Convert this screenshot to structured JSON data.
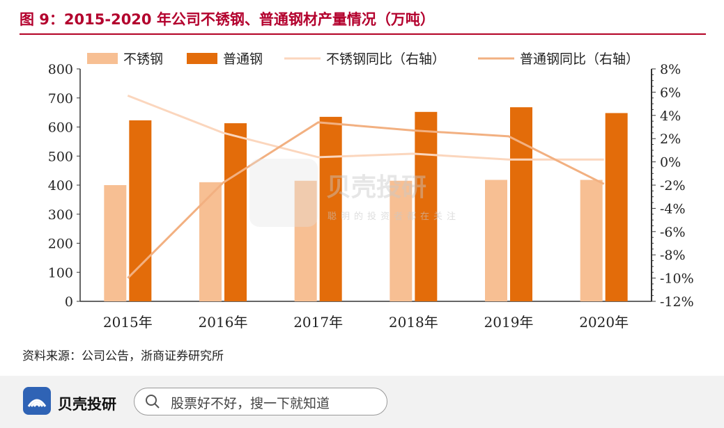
{
  "header": {
    "title": "图 9：2015-2020 年公司不锈钢、普通钢材产量情况（万吨）"
  },
  "source": "资料来源：公司公告，浙商证券研究所",
  "watermark": {
    "brand": "贝壳投研",
    "slogan": "聪明的投资者都在关注"
  },
  "footer": {
    "brand": "贝壳投研",
    "search_placeholder": "股票好不好，搜一下就知道"
  },
  "colors": {
    "stainless": "#f7bf93",
    "ordinary": "#e36c0a",
    "stainless_yoy": "#fbd6bd",
    "ordinary_yoy": "#f2b081",
    "title": "#b3002d"
  },
  "chart_data": {
    "type": "bar",
    "categories": [
      "2015年",
      "2016年",
      "2017年",
      "2018年",
      "2019年",
      "2020年"
    ],
    "series": [
      {
        "name": "不锈钢",
        "type": "bar",
        "axis": "left",
        "values": [
          400,
          410,
          415,
          415,
          418,
          418
        ]
      },
      {
        "name": "普通钢",
        "type": "bar",
        "axis": "left",
        "values": [
          623,
          613,
          635,
          652,
          668,
          648
        ]
      },
      {
        "name": "不锈钢同比（右轴）",
        "type": "line",
        "axis": "right",
        "values": [
          5.7,
          2.5,
          0.4,
          0.7,
          0.2,
          0.2
        ]
      },
      {
        "name": "普通钢同比（右轴）",
        "type": "line",
        "axis": "right",
        "values": [
          -10.0,
          -1.8,
          3.4,
          2.7,
          2.2,
          -1.9
        ]
      }
    ],
    "ylim": [
      0,
      800
    ],
    "yticks": [
      "0",
      "100",
      "200",
      "300",
      "400",
      "500",
      "600",
      "700",
      "800"
    ],
    "y2lim": [
      -12,
      8
    ],
    "y2ticks": [
      "-12%",
      "-10%",
      "-8%",
      "-6%",
      "-4%",
      "-2%",
      "0%",
      "2%",
      "4%",
      "6%",
      "8%"
    ],
    "legend": "top",
    "grid": false
  }
}
